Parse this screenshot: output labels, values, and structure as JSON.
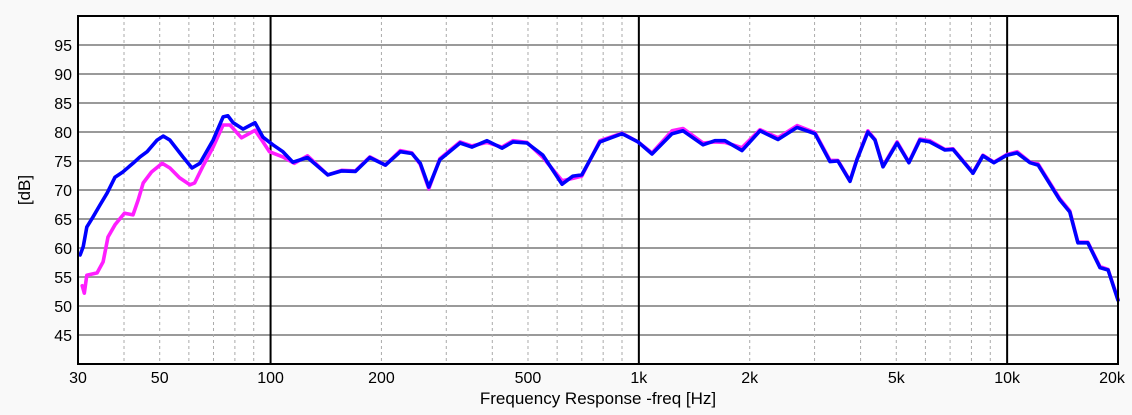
{
  "chart_data": {
    "type": "line",
    "title": "",
    "xlabel": "Frequency Response -freq [Hz]",
    "ylabel": "[dB]",
    "xscale": "log",
    "xlim": [
      30,
      20000
    ],
    "ylim": [
      40,
      100
    ],
    "grid": true,
    "yticks": [
      45,
      50,
      55,
      60,
      65,
      70,
      75,
      80,
      85,
      90,
      95
    ],
    "ytick_labels": [
      "45",
      "50",
      "55",
      "60",
      "65",
      "70",
      "75",
      "80",
      "85",
      "90",
      "95"
    ],
    "xticks": [
      30,
      50,
      100,
      200,
      500,
      1000,
      2000,
      5000,
      10000,
      20000
    ],
    "xtick_labels": [
      "30",
      "50",
      "100",
      "200",
      "500",
      "1k",
      "2k",
      "5k",
      "10k",
      "20k"
    ],
    "x_major_grid": [
      100,
      1000,
      10000
    ],
    "x_minor_grid": [
      40,
      50,
      60,
      70,
      80,
      90,
      200,
      300,
      400,
      500,
      600,
      700,
      800,
      900,
      2000,
      3000,
      4000,
      5000,
      6000,
      7000,
      8000,
      9000
    ],
    "series": [
      {
        "name": "magenta",
        "color": "#ff1eff",
        "points": [
          [
            30.8,
            53.5
          ],
          [
            31.2,
            52.2
          ],
          [
            31.7,
            55.3
          ],
          [
            33.8,
            55.7
          ],
          [
            35.1,
            57.6
          ],
          [
            36.2,
            61.9
          ],
          [
            37.8,
            64.0
          ],
          [
            40.1,
            66.0
          ],
          [
            42.3,
            65.7
          ],
          [
            43.7,
            68.3
          ],
          [
            45.1,
            71.2
          ],
          [
            47.5,
            73.1
          ],
          [
            50.8,
            74.6
          ],
          [
            53.3,
            73.8
          ],
          [
            56.6,
            72.1
          ],
          [
            60.4,
            70.9
          ],
          [
            62.2,
            71.2
          ],
          [
            65.4,
            74.0
          ],
          [
            69.8,
            77.4
          ],
          [
            74.3,
            81.2
          ],
          [
            77.6,
            81.2
          ],
          [
            83.4,
            79.0
          ],
          [
            90.7,
            80.3
          ],
          [
            95.4,
            78.3
          ],
          [
            99.3,
            76.6
          ],
          [
            108,
            75.7
          ],
          [
            116,
            74.6
          ],
          [
            126,
            75.9
          ],
          [
            143,
            72.6
          ],
          [
            156,
            73.4
          ],
          [
            170,
            73.3
          ],
          [
            186,
            75.7
          ],
          [
            205,
            74.3
          ],
          [
            225,
            76.8
          ],
          [
            242,
            76.4
          ],
          [
            255,
            74.4
          ],
          [
            269,
            70.2
          ],
          [
            288,
            75.4
          ],
          [
            327,
            78.3
          ],
          [
            352,
            77.6
          ],
          [
            387,
            78.2
          ],
          [
            425,
            77.4
          ],
          [
            455,
            78.5
          ],
          [
            497,
            78.2
          ],
          [
            549,
            75.6
          ],
          [
            619,
            71.6
          ],
          [
            662,
            72.0
          ],
          [
            700,
            72.4
          ],
          [
            784,
            78.5
          ],
          [
            900,
            79.8
          ],
          [
            995,
            78.3
          ],
          [
            1086,
            76.4
          ],
          [
            1230,
            80.2
          ],
          [
            1318,
            80.6
          ],
          [
            1493,
            78.1
          ],
          [
            1609,
            78.3
          ],
          [
            1713,
            78.2
          ],
          [
            1906,
            77.3
          ],
          [
            2133,
            80.4
          ],
          [
            2387,
            79.0
          ],
          [
            2689,
            81.1
          ],
          [
            3008,
            79.9
          ],
          [
            3304,
            75.1
          ],
          [
            3472,
            75.1
          ],
          [
            3744,
            71.6
          ],
          [
            3910,
            75.3
          ],
          [
            4188,
            80.2
          ],
          [
            4376,
            78.7
          ],
          [
            4602,
            74.1
          ],
          [
            5025,
            78.3
          ],
          [
            5412,
            74.8
          ],
          [
            5796,
            78.8
          ],
          [
            6168,
            78.5
          ],
          [
            6777,
            77.0
          ],
          [
            7128,
            77.1
          ],
          [
            8076,
            73.0
          ],
          [
            8592,
            76.0
          ],
          [
            9207,
            74.8
          ],
          [
            9981,
            76.1
          ],
          [
            10644,
            76.6
          ],
          [
            11538,
            74.8
          ],
          [
            12138,
            74.5
          ],
          [
            13902,
            68.5
          ],
          [
            14799,
            66.4
          ],
          [
            15564,
            61.0
          ],
          [
            16563,
            61.0
          ],
          [
            17871,
            56.8
          ],
          [
            18795,
            56.3
          ],
          [
            20000,
            51.1
          ]
        ]
      },
      {
        "name": "blue",
        "color": "#0000ff",
        "points": [
          [
            30.4,
            58.8
          ],
          [
            31,
            60.2
          ],
          [
            31.7,
            63.6
          ],
          [
            32.9,
            65.3
          ],
          [
            34.4,
            67.4
          ],
          [
            36,
            69.5
          ],
          [
            37.8,
            72.2
          ],
          [
            39.7,
            73.1
          ],
          [
            42.3,
            74.6
          ],
          [
            44.2,
            75.7
          ],
          [
            46.2,
            76.6
          ],
          [
            49.2,
            78.6
          ],
          [
            51.1,
            79.3
          ],
          [
            53.3,
            78.6
          ],
          [
            57.8,
            75.7
          ],
          [
            61.2,
            73.8
          ],
          [
            64.3,
            74.6
          ],
          [
            69.8,
            78.6
          ],
          [
            74.3,
            82.6
          ],
          [
            76.6,
            82.8
          ],
          [
            79.1,
            81.6
          ],
          [
            84.2,
            80.5
          ],
          [
            90.7,
            81.6
          ],
          [
            95.4,
            79.1
          ],
          [
            101.5,
            77.8
          ],
          [
            108,
            76.6
          ],
          [
            115,
            74.8
          ],
          [
            126,
            75.6
          ],
          [
            143,
            72.6
          ],
          [
            156,
            73.3
          ],
          [
            170,
            73.2
          ],
          [
            186,
            75.6
          ],
          [
            205,
            74.3
          ],
          [
            225,
            76.6
          ],
          [
            242,
            76.3
          ],
          [
            255,
            74.6
          ],
          [
            269,
            70.5
          ],
          [
            288,
            75.2
          ],
          [
            327,
            78.1
          ],
          [
            352,
            77.4
          ],
          [
            387,
            78.5
          ],
          [
            425,
            77.2
          ],
          [
            455,
            78.3
          ],
          [
            497,
            78.1
          ],
          [
            549,
            76.0
          ],
          [
            619,
            71.0
          ],
          [
            662,
            72.4
          ],
          [
            700,
            72.6
          ],
          [
            784,
            78.3
          ],
          [
            900,
            79.7
          ],
          [
            995,
            78.3
          ],
          [
            1086,
            76.2
          ],
          [
            1230,
            79.7
          ],
          [
            1318,
            80.2
          ],
          [
            1493,
            77.8
          ],
          [
            1609,
            78.5
          ],
          [
            1713,
            78.5
          ],
          [
            1906,
            76.8
          ],
          [
            2133,
            80.2
          ],
          [
            2387,
            78.7
          ],
          [
            2689,
            80.8
          ],
          [
            3008,
            79.7
          ],
          [
            3304,
            74.9
          ],
          [
            3472,
            75.0
          ],
          [
            3744,
            71.5
          ],
          [
            3910,
            75.2
          ],
          [
            4188,
            80.0
          ],
          [
            4376,
            78.6
          ],
          [
            4602,
            74.0
          ],
          [
            5025,
            78.1
          ],
          [
            5412,
            74.7
          ],
          [
            5796,
            78.6
          ],
          [
            6168,
            78.3
          ],
          [
            6777,
            76.9
          ],
          [
            7128,
            77.0
          ],
          [
            8076,
            72.9
          ],
          [
            8592,
            75.9
          ],
          [
            9207,
            74.7
          ],
          [
            9981,
            76.0
          ],
          [
            10644,
            76.4
          ],
          [
            11538,
            74.7
          ],
          [
            12138,
            74.3
          ],
          [
            13902,
            68.3
          ],
          [
            14799,
            66.2
          ],
          [
            15564,
            60.9
          ],
          [
            16563,
            60.9
          ],
          [
            17871,
            56.6
          ],
          [
            18795,
            56.2
          ],
          [
            20000,
            51.0
          ]
        ]
      }
    ]
  }
}
